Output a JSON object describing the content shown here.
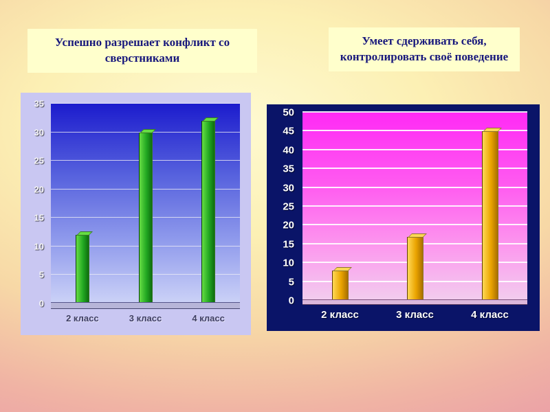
{
  "chart_data": [
    {
      "type": "bar",
      "title": "Успешно разрешает конфликт со сверстниками",
      "categories": [
        "2 класс",
        "3 класс",
        "4 класс"
      ],
      "values": [
        12,
        30,
        32
      ],
      "xlabel": "",
      "ylabel": "",
      "ylim": [
        0,
        35
      ],
      "ytick_step": 5,
      "grid": true,
      "legend": "none",
      "bar_color": "#22a822",
      "bar_color_light": "#66dd44",
      "bar_color_dark": "#0e6d0e",
      "plot_bg_top": "#1c1ccd",
      "plot_bg_bottom": "#ccd2f7",
      "panel_bg": "#c9c7f2"
    },
    {
      "type": "bar",
      "title": "Умеет сдерживать себя, контролировать своё поведение",
      "categories": [
        "2 класс",
        "3 класс",
        "4 класс"
      ],
      "values": [
        8,
        17,
        45
      ],
      "xlabel": "",
      "ylabel": "",
      "ylim": [
        0,
        50
      ],
      "ytick_step": 5,
      "grid": true,
      "legend": "none",
      "bar_color": "#eaa400",
      "bar_color_light": "#ffd855",
      "bar_color_dark": "#a86f00",
      "plot_bg_top": "#ff2af5",
      "plot_bg_bottom": "#f2cdee",
      "panel_bg": "#0a1468"
    }
  ]
}
